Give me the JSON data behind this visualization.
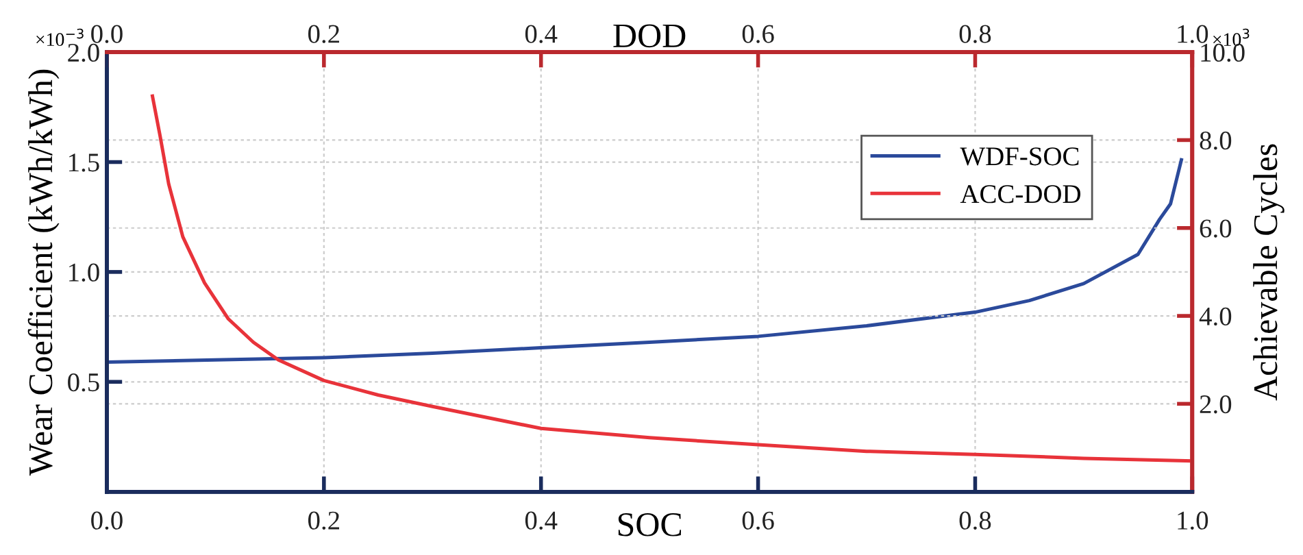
{
  "chart_data": {
    "type": "line",
    "xlabel": "SOC",
    "x2label": "DOD",
    "ylabel": "Wear Coefficient (kWh/kWh)",
    "y2label": "Achievable Cycles",
    "annotations": [
      "×10$^{−3}$",
      "×10$^{3}$"
    ],
    "xlim": [
      0,
      1.0
    ],
    "xticks": [
      {
        "value": 0,
        "label": "0.0"
      },
      0.2,
      0.4,
      0.6,
      0.8,
      {
        "value": 1,
        "label": "1.0"
      }
    ],
    "x2lim": [
      0,
      1.0
    ],
    "x2ticks": [
      {
        "value": 0,
        "label": "0.0"
      },
      0.2,
      0.4,
      0.6,
      0.8,
      {
        "value": 1,
        "label": "1.0"
      }
    ],
    "ylim": [
      0,
      2.0
    ],
    "yticks": [
      0.5,
      {
        "value": 1,
        "label": "1.0"
      },
      1.5,
      {
        "value": 2,
        "label": "2.0"
      }
    ],
    "y2lim": [
      0,
      10.0
    ],
    "y2ticks": [
      {
        "value": 2,
        "label": "2.0"
      },
      {
        "value": 4,
        "label": "4.0"
      },
      {
        "value": 6,
        "label": "6.0"
      },
      {
        "value": 8,
        "label": "8.0"
      },
      {
        "value": 10,
        "label": "10.0"
      }
    ],
    "grid": true,
    "legend": "top right",
    "marker": "none",
    "line_style": "solid",
    "series": [
      {
        "name": "WDF-SOC",
        "color": "#2b4a9b",
        "x": [
          0,
          0.1,
          0.2,
          0.3,
          0.4,
          0.5,
          0.6,
          0.7,
          0.8,
          0.85,
          0.9,
          0.95,
          0.97,
          0.98,
          0.99
        ],
        "values": [
          0.59,
          0.6,
          0.61,
          0.63,
          0.655,
          0.68,
          0.707,
          0.755,
          0.817,
          0.87,
          0.947,
          1.08,
          1.24,
          1.31,
          1.51
        ]
      },
      {
        "name": "ACC-DOD",
        "color": "#e8333a",
        "axis": "y2",
        "x": [
          0.042,
          0.049,
          0.057,
          0.07,
          0.09,
          0.112,
          0.135,
          0.158,
          0.2,
          0.25,
          0.3,
          0.4,
          0.5,
          0.6,
          0.7,
          0.8,
          0.9,
          1.0
        ],
        "values": [
          9.0,
          8.1,
          7.0,
          5.8,
          4.75,
          3.93,
          3.4,
          3.0,
          2.53,
          2.2,
          1.94,
          1.44,
          1.23,
          1.07,
          0.92,
          0.85,
          0.76,
          0.7
        ]
      }
    ]
  }
}
